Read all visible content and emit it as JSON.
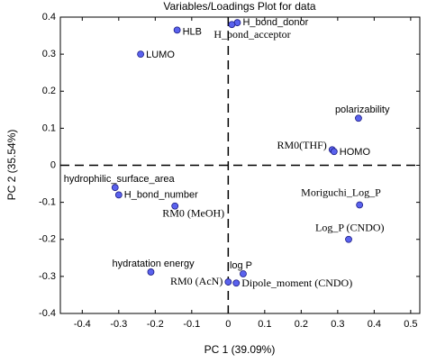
{
  "chart_data": {
    "type": "scatter",
    "title": "Variables/Loadings Plot for data",
    "xlabel": "PC 1 (39.09%)",
    "ylabel": "PC 2 (35.54%)",
    "labels": [
      "H_bond_donor",
      "H_bond_acceptor",
      "HLB",
      "LUMO",
      "polarizability",
      "RM0(THF)",
      "HOMO",
      "hydrophilic_surface_area",
      "H_bond_number",
      "RM0 (MeOH)",
      "Moriguchi_Log_P",
      "Log_P (CNDO)",
      "hydratation energy",
      "log P",
      "RM0 (AcN)",
      "Dipole_moment (CNDO)"
    ],
    "x": [
      0.025,
      0.01,
      -0.14,
      -0.24,
      0.357,
      0.285,
      0.29,
      -0.31,
      -0.3,
      -0.146,
      0.36,
      0.33,
      -0.212,
      0.041,
      0.0,
      0.022
    ],
    "values": [
      0.385,
      0.38,
      0.365,
      0.3,
      0.127,
      0.042,
      0.037,
      -0.06,
      -0.08,
      -0.11,
      -0.107,
      -0.2,
      -0.288,
      -0.293,
      -0.315,
      -0.318
    ],
    "color": "#5a62ee",
    "xlim": [
      -0.46,
      0.525
    ],
    "ylim": [
      -0.4,
      0.4
    ],
    "xticks": [
      -0.4,
      -0.3,
      -0.2,
      -0.1,
      0,
      0.1,
      0.2,
      0.3,
      0.4,
      0.5
    ],
    "yticks": [
      -0.4,
      -0.3,
      -0.2,
      -0.1,
      0,
      0.1,
      0.2,
      0.3,
      0.4
    ]
  }
}
